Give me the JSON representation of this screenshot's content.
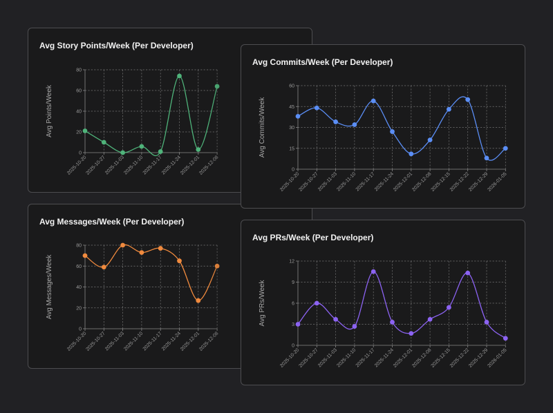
{
  "colors": {
    "story": "#4fb37a",
    "commits": "#5b8ef5",
    "messages": "#f08a3e",
    "prs": "#8c63f2"
  },
  "cards": {
    "story": {
      "title": "Avg Story Points/Week (Per Developer)"
    },
    "messages": {
      "title": "Avg Messages/Week (Per Developer)"
    },
    "commits": {
      "title": "Avg Commits/Week (Per Developer)"
    },
    "prs": {
      "title": "Avg PRs/Week (Per Developer)"
    }
  },
  "chart_data": [
    {
      "id": "story",
      "type": "line",
      "title": "Avg Story Points/Week (Per Developer)",
      "ylabel": "Avg Points/Week",
      "xlabel": "",
      "ylim": [
        0,
        80
      ],
      "yticks": [
        0,
        20,
        40,
        60,
        80
      ],
      "categories": [
        "2025-10-20",
        "2025-10-27",
        "2025-11-03",
        "2025-11-10",
        "2025-11-17",
        "2025-11-24",
        "2025-12-01",
        "2025-12-08"
      ],
      "series": [
        {
          "name": "Avg Story Points/Week",
          "values": [
            21,
            10,
            0,
            6,
            1,
            74,
            3,
            64
          ]
        }
      ]
    },
    {
      "id": "commits",
      "type": "line",
      "title": "Avg Commits/Week (Per Developer)",
      "ylabel": "Avg Commits/Week",
      "xlabel": "",
      "ylim": [
        0,
        60
      ],
      "yticks": [
        0,
        15,
        30,
        45,
        60
      ],
      "categories": [
        "2025-10-20",
        "2025-10-27",
        "2025-11-03",
        "2025-11-10",
        "2025-11-17",
        "2025-11-24",
        "2025-12-01",
        "2025-12-08",
        "2025-12-15",
        "2025-12-22",
        "2025-12-29",
        "2026-01-05"
      ],
      "series": [
        {
          "name": "Avg Commits/Week",
          "values": [
            38,
            44,
            34,
            32,
            49,
            27,
            11,
            21,
            43,
            50,
            8,
            15
          ]
        }
      ]
    },
    {
      "id": "messages",
      "type": "line",
      "title": "Avg Messages/Week (Per Developer)",
      "ylabel": "Avg Messages/Week",
      "xlabel": "",
      "ylim": [
        0,
        80
      ],
      "yticks": [
        0,
        20,
        40,
        60,
        80
      ],
      "categories": [
        "2025-10-20",
        "2025-10-27",
        "2025-11-03",
        "2025-11-10",
        "2025-11-17",
        "2025-11-24",
        "2025-12-01",
        "2025-12-08"
      ],
      "series": [
        {
          "name": "Avg Messages/Week",
          "values": [
            70,
            59,
            80,
            73,
            77,
            65,
            27,
            60
          ]
        }
      ]
    },
    {
      "id": "prs",
      "type": "line",
      "title": "Avg PRs/Week (Per Developer)",
      "ylabel": "Avg PRs/Week",
      "xlabel": "",
      "ylim": [
        0,
        12
      ],
      "yticks": [
        0,
        3,
        6,
        9,
        12
      ],
      "categories": [
        "2025-10-20",
        "2025-10-27",
        "2025-11-03",
        "2025-11-10",
        "2025-11-17",
        "2025-11-24",
        "2025-12-01",
        "2025-12-08",
        "2025-12-15",
        "2025-12-22",
        "2025-12-29",
        "2026-01-05"
      ],
      "series": [
        {
          "name": "Avg PRs/Week",
          "values": [
            3,
            6,
            3.7,
            2.7,
            10.5,
            3.3,
            1.7,
            3.7,
            5.4,
            10.3,
            3.3,
            1
          ]
        }
      ]
    }
  ]
}
